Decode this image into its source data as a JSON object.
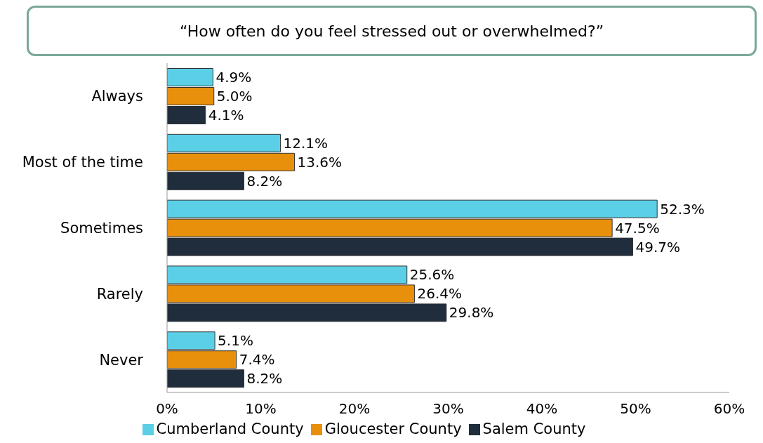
{
  "chart_data": {
    "type": "bar",
    "orientation": "horizontal",
    "title": "“How often do you feel stressed out or overwhelmed?”",
    "categories": [
      "Always",
      "Most of the time",
      "Sometimes",
      "Rarely",
      "Never"
    ],
    "series": [
      {
        "name": "Cumberland County",
        "color": "#5bcfe6",
        "values": [
          4.9,
          12.1,
          52.3,
          25.6,
          5.1
        ],
        "value_labels": [
          "4.9%",
          "12.1%",
          "52.3%",
          "25.6%",
          "5.1%"
        ]
      },
      {
        "name": "Gloucester County",
        "color": "#e8900c",
        "values": [
          5.0,
          13.6,
          47.5,
          26.4,
          7.4
        ],
        "value_labels": [
          "5.0%",
          "13.6%",
          "47.5%",
          "26.4%",
          "7.4%"
        ]
      },
      {
        "name": "Salem County",
        "color": "#1f2d3d",
        "values": [
          4.1,
          8.2,
          49.7,
          29.8,
          8.2
        ],
        "value_labels": [
          "4.1%",
          "8.2%",
          "49.7%",
          "29.8%",
          "8.2%"
        ]
      }
    ],
    "xlim": [
      0,
      60
    ],
    "xticks": [
      {
        "value": 0,
        "label": "0%"
      },
      {
        "value": 10,
        "label": "10%"
      },
      {
        "value": 20,
        "label": "20%"
      },
      {
        "value": 30,
        "label": "30%"
      },
      {
        "value": 40,
        "label": "40%"
      },
      {
        "value": 50,
        "label": "50%"
      },
      {
        "value": 60,
        "label": "60%"
      }
    ],
    "grid": false,
    "legend": "bottom"
  }
}
